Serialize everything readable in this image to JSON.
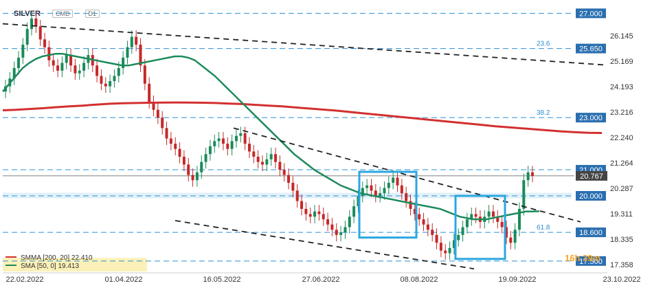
{
  "header": {
    "symbol": "SILVER",
    "sub": "CMD",
    "timeframe": "D1"
  },
  "timer": "16h 39m",
  "legend": [
    {
      "text": "SMMA [200, 20] 22.410",
      "color": "#d32f2f"
    },
    {
      "text": "SMA [50, 0] 19.413",
      "color": "#1b8a5a"
    }
  ],
  "colors": {
    "smma": "#d32f2f",
    "sma": "#1b8a5a",
    "level": "#2a8fd4",
    "zone": "#cfe8f5",
    "up": "#1b8a5a",
    "down": "#c62828",
    "box": "#2aa7e0",
    "trend": "#222222"
  },
  "chart_data": {
    "type": "candlestick",
    "title": "SILVER",
    "y_axis": {
      "ticks": [
        "26.145",
        "25.169",
        "24.193",
        "23.216",
        "22.240",
        "21.264",
        "20.287",
        "19.311",
        "18.335",
        "17.358"
      ],
      "range": [
        17.1,
        27.3
      ]
    },
    "x_axis": {
      "ticks": [
        "22.02.2022",
        "01.04.2022",
        "16.05.2022",
        "27.06.2022",
        "08.08.2022",
        "19.09.2022",
        "23.10.2022"
      ]
    },
    "levels": [
      {
        "label": "27.000",
        "value": 27.0,
        "fib": ""
      },
      {
        "label": "25.650",
        "value": 25.65,
        "fib": "23.6"
      },
      {
        "label": "23.000",
        "value": 23.0,
        "fib": "38.2"
      },
      {
        "label": "21.000",
        "value": 21.0,
        "fib": ""
      },
      {
        "label": "20.000",
        "value": 20.0,
        "fib": ""
      },
      {
        "label": "18.600",
        "value": 18.6,
        "fib": "61.8"
      },
      {
        "label": "17.500",
        "value": 17.5,
        "fib": ""
      }
    ],
    "last_price": {
      "label": "20.767",
      "value": 20.767
    },
    "support_zone": [
      19.9,
      20.12
    ],
    "closes": [
      24.2,
      24.5,
      24.9,
      25.3,
      25.8,
      26.4,
      26.8,
      26.5,
      26.0,
      25.7,
      25.2,
      25.0,
      24.8,
      25.1,
      25.4,
      25.0,
      24.7,
      24.8,
      25.1,
      25.4,
      25.0,
      24.6,
      24.3,
      24.2,
      24.4,
      24.6,
      24.9,
      25.3,
      25.7,
      26.1,
      25.8,
      25.0,
      24.3,
      23.6,
      23.3,
      23.0,
      22.6,
      22.2,
      22.0,
      21.8,
      21.5,
      21.2,
      20.8,
      20.6,
      20.9,
      21.3,
      21.6,
      21.9,
      22.1,
      22.2,
      22.0,
      21.8,
      22.1,
      22.3,
      22.4,
      22.0,
      21.7,
      21.5,
      21.3,
      21.2,
      21.4,
      21.6,
      21.3,
      21.0,
      20.8,
      20.5,
      20.2,
      19.8,
      19.5,
      19.3,
      19.2,
      19.4,
      19.3,
      19.1,
      18.9,
      18.7,
      18.5,
      18.6,
      18.8,
      19.2,
      19.6,
      20.0,
      20.3,
      20.4,
      20.2,
      20.0,
      20.1,
      20.3,
      20.5,
      20.7,
      20.4,
      20.1,
      19.8,
      19.5,
      19.3,
      19.1,
      18.9,
      18.7,
      18.5,
      18.2,
      17.9,
      17.8,
      18.0,
      18.3,
      18.5,
      18.8,
      19.1,
      19.3,
      19.2,
      19.0,
      19.2,
      19.4,
      19.2,
      19.0,
      18.8,
      18.4,
      18.2,
      18.7,
      19.5,
      20.6,
      20.9,
      20.77
    ],
    "sma50": [
      24.0,
      24.3,
      24.6,
      24.9,
      25.1,
      25.25,
      25.35,
      25.4,
      25.45,
      25.45,
      25.4,
      25.35,
      25.3,
      25.25,
      25.2,
      25.15,
      25.1,
      25.05,
      25.0,
      25.0,
      25.05,
      25.1,
      25.15,
      25.2,
      25.25,
      25.3,
      25.35,
      25.35,
      25.3,
      25.2,
      25.0,
      24.8,
      24.6,
      24.35,
      24.1,
      23.85,
      23.6,
      23.35,
      23.1,
      22.85,
      22.6,
      22.35,
      22.1,
      21.85,
      21.6,
      21.4,
      21.2,
      21.0,
      20.85,
      20.7,
      20.55,
      20.4,
      20.3,
      20.2,
      20.1,
      20.05,
      20.0,
      19.95,
      19.9,
      19.85,
      19.8,
      19.75,
      19.7,
      19.65,
      19.6,
      19.55,
      19.5,
      19.4,
      19.3,
      19.2,
      19.15,
      19.1,
      19.1,
      19.1,
      19.15,
      19.2,
      19.25,
      19.3,
      19.35,
      19.4,
      19.4,
      19.41
    ],
    "smma200": [
      23.28,
      23.3,
      23.33,
      23.36,
      23.4,
      23.43,
      23.46,
      23.5,
      23.53,
      23.55,
      23.56,
      23.57,
      23.575,
      23.58,
      23.575,
      23.57,
      23.56,
      23.54,
      23.52,
      23.49,
      23.46,
      23.43,
      23.39,
      23.35,
      23.31,
      23.27,
      23.22,
      23.17,
      23.12,
      23.07,
      23.02,
      22.97,
      22.92,
      22.87,
      22.82,
      22.77,
      22.72,
      22.67,
      22.63,
      22.59,
      22.55,
      22.51,
      22.47,
      22.44,
      22.42,
      22.41
    ]
  }
}
